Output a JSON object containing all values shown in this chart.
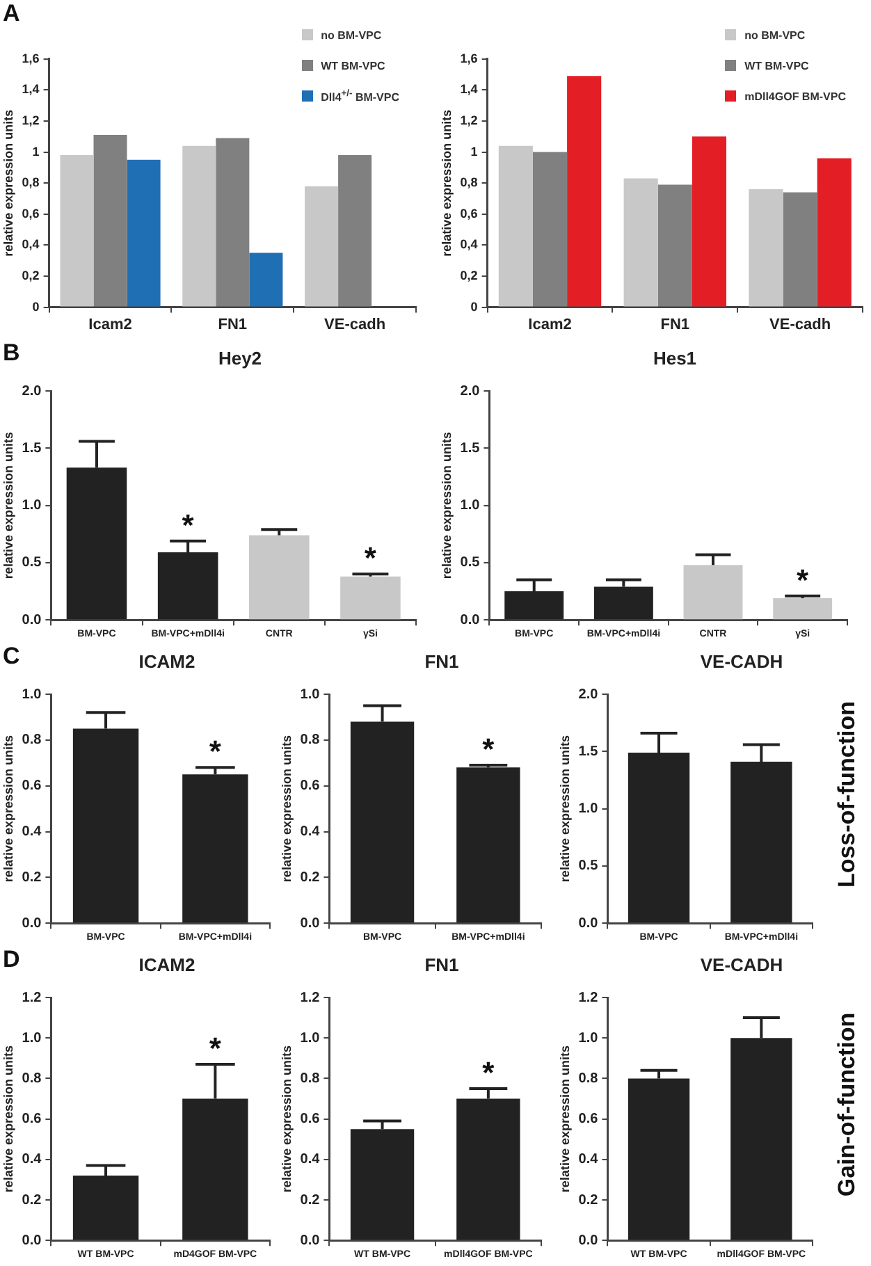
{
  "chart_data": [
    {
      "type": "bar",
      "categories": [
        "Icam2",
        "FN1",
        "VE-cadh"
      ],
      "ylabel": "relative expression units",
      "ylim": [
        0,
        1.6
      ],
      "yticks": [
        0,
        {
          "value": 0.2,
          "label": "0,2"
        },
        {
          "value": 0.4,
          "label": "0,4"
        },
        {
          "value": 0.6,
          "label": "0,6"
        },
        {
          "value": 0.8,
          "label": "0,8"
        },
        1,
        {
          "value": 1.2,
          "label": "1,2"
        },
        {
          "value": 1.4,
          "label": "1,4"
        },
        {
          "value": 1.6,
          "label": "1,6"
        }
      ],
      "legend": "top right",
      "annotations": [
        "A"
      ],
      "series": [
        {
          "name": "no BM-VPC",
          "color": "#c8c8c8",
          "values": [
            0.98,
            1.04,
            0.78
          ]
        },
        {
          "name": "WT BM-VPC",
          "color": "#808080",
          "values": [
            1.11,
            1.09,
            0.98
          ]
        },
        {
          "name": "Dll4$^{+/-}$ BM-VPC",
          "color": "#1f6fb5",
          "values": [
            0.95,
            0.35,
            null
          ]
        }
      ]
    },
    {
      "type": "bar",
      "categories": [
        "Icam2",
        "FN1",
        "VE-cadh"
      ],
      "ylabel": "relative expression units",
      "ylim": [
        0,
        1.6
      ],
      "yticks": [
        0,
        {
          "value": 0.2,
          "label": "0,2"
        },
        {
          "value": 0.4,
          "label": "0,4"
        },
        {
          "value": 0.6,
          "label": "0,6"
        },
        {
          "value": 0.8,
          "label": "0,8"
        },
        1,
        {
          "value": 1.2,
          "label": "1,2"
        },
        {
          "value": 1.4,
          "label": "1,4"
        },
        {
          "value": 1.6,
          "label": "1,6"
        }
      ],
      "legend": "top right",
      "series": [
        {
          "name": "no BM-VPC",
          "color": "#c8c8c8",
          "values": [
            1.04,
            0.83,
            0.76
          ]
        },
        {
          "name": "WT BM-VPC",
          "color": "#808080",
          "values": [
            1.0,
            0.79,
            0.74
          ]
        },
        {
          "name": "mDll4GOF BM-VPC",
          "color": "#e31e24",
          "values": [
            1.49,
            1.1,
            0.96
          ]
        }
      ]
    },
    {
      "type": "bar",
      "title": "Hey2",
      "categories": [
        "BM-VPC",
        "BM-VPC+mDll4i",
        "CNTR",
        "γSi"
      ],
      "values": [
        1.33,
        0.59,
        0.74,
        0.38
      ],
      "errors": [
        0.23,
        0.1,
        0.05,
        0.02
      ],
      "colors": [
        "#222222",
        "#222222",
        "#c8c8c8",
        "#c8c8c8"
      ],
      "ylabel": "relative expression units",
      "ylim": [
        0,
        2
      ],
      "yticks": [
        {
          "value": 0,
          "label": "0.0"
        },
        0.5,
        {
          "value": 1,
          "label": "1.0"
        },
        1.5,
        {
          "value": 2,
          "label": "2.0"
        }
      ],
      "annotations": [
        "B",
        {
          "text": "*",
          "x": "BM-VPC+mDll4i",
          "y": 0.59
        },
        {
          "text": "*",
          "x": "γSi",
          "y": 0.38
        }
      ]
    },
    {
      "type": "bar",
      "title": "Hes1",
      "categories": [
        "BM-VPC",
        "BM-VPC+mDll4i",
        "CNTR",
        "γSi"
      ],
      "values": [
        0.25,
        0.29,
        0.48,
        0.19
      ],
      "errors": [
        0.1,
        0.06,
        0.09,
        0.02
      ],
      "colors": [
        "#222222",
        "#222222",
        "#c8c8c8",
        "#c8c8c8"
      ],
      "ylabel": "relative expression units",
      "ylim": [
        0,
        2
      ],
      "yticks": [
        {
          "value": 0,
          "label": "0.0"
        },
        0.5,
        {
          "value": 1,
          "label": "1.0"
        },
        1.5,
        {
          "value": 2,
          "label": "2.0"
        }
      ],
      "annotations": [
        {
          "text": "*",
          "x": "γSi",
          "y": 0.19
        }
      ]
    },
    {
      "type": "bar",
      "title": "ICAM2",
      "categories": [
        "BM-VPC",
        "BM-VPC+mDll4i"
      ],
      "values": [
        0.85,
        0.65
      ],
      "errors": [
        0.07,
        0.03
      ],
      "colors": [
        "#222222",
        "#222222"
      ],
      "ylabel": "relative expression units",
      "ylim": [
        0,
        1
      ],
      "yticks": [
        {
          "value": 0,
          "label": "0.0"
        },
        0.2,
        0.4,
        0.6,
        0.8,
        {
          "value": 1,
          "label": "1.0"
        }
      ],
      "annotations": [
        "C",
        {
          "text": "*",
          "x": "BM-VPC+mDll4i",
          "y": 0.65
        }
      ]
    },
    {
      "type": "bar",
      "title": "FN1",
      "categories": [
        "BM-VPC",
        "BM-VPC+mDll4i"
      ],
      "values": [
        0.88,
        0.68
      ],
      "errors": [
        0.07,
        0.01
      ],
      "colors": [
        "#222222",
        "#222222"
      ],
      "ylabel": "relative expression units",
      "ylim": [
        0,
        1
      ],
      "yticks": [
        {
          "value": 0,
          "label": "0.0"
        },
        0.2,
        0.4,
        0.6,
        0.8,
        {
          "value": 1,
          "label": "1.0"
        }
      ],
      "annotations": [
        {
          "text": "*",
          "x": "BM-VPC+mDll4i",
          "y": 0.68
        }
      ]
    },
    {
      "type": "bar",
      "title": "VE-CADH",
      "categories": [
        "BM-VPC",
        "BM-VPC+mDll4i"
      ],
      "values": [
        1.49,
        1.41
      ],
      "errors": [
        0.17,
        0.15
      ],
      "colors": [
        "#222222",
        "#222222"
      ],
      "ylabel": "relative expression units",
      "ylim": [
        0,
        2
      ],
      "yticks": [
        {
          "value": 0,
          "label": "0.0"
        },
        0.5,
        {
          "value": 1,
          "label": "1.0"
        },
        1.5,
        {
          "value": 2,
          "label": "2.0"
        }
      ],
      "annotations": [
        "Loss-of-function"
      ]
    },
    {
      "type": "bar",
      "title": "ICAM2",
      "categories": [
        "WT BM-VPC",
        "mD4GOF BM-VPC"
      ],
      "values": [
        0.32,
        0.7
      ],
      "errors": [
        0.05,
        0.17
      ],
      "colors": [
        "#222222",
        "#222222"
      ],
      "ylabel": "relative expression units",
      "ylim": [
        0,
        1.2
      ],
      "yticks": [
        {
          "value": 0,
          "label": "0.0"
        },
        0.2,
        0.4,
        0.6,
        0.8,
        {
          "value": 1,
          "label": "1.0"
        },
        1.2
      ],
      "annotations": [
        "D",
        {
          "text": "*",
          "x": "mD4GOF BM-VPC",
          "y": 0.7
        }
      ]
    },
    {
      "type": "bar",
      "title": "FN1",
      "categories": [
        "WT BM-VPC",
        "mDll4GOF BM-VPC"
      ],
      "values": [
        0.55,
        0.7
      ],
      "errors": [
        0.04,
        0.05
      ],
      "colors": [
        "#222222",
        "#222222"
      ],
      "ylabel": "relative expression units",
      "ylim": [
        0,
        1.2
      ],
      "yticks": [
        {
          "value": 0,
          "label": "0.0"
        },
        0.2,
        0.4,
        0.6,
        0.8,
        {
          "value": 1,
          "label": "1.0"
        },
        1.2
      ],
      "annotations": [
        {
          "text": "*",
          "x": "mDll4GOF BM-VPC",
          "y": 0.7
        }
      ]
    },
    {
      "type": "bar",
      "title": "VE-CADH",
      "categories": [
        "WT BM-VPC",
        "mDll4GOF BM-VPC"
      ],
      "values": [
        0.8,
        1.0
      ],
      "errors": [
        0.04,
        0.1
      ],
      "colors": [
        "#222222",
        "#222222"
      ],
      "ylabel": "relative expression units",
      "ylim": [
        0,
        1.2
      ],
      "yticks": [
        {
          "value": 0,
          "label": "0.0"
        },
        0.2,
        0.4,
        0.6,
        0.8,
        {
          "value": 1,
          "label": "1.0"
        },
        1.2
      ],
      "annotations": [
        "Gain-of-function"
      ]
    }
  ]
}
